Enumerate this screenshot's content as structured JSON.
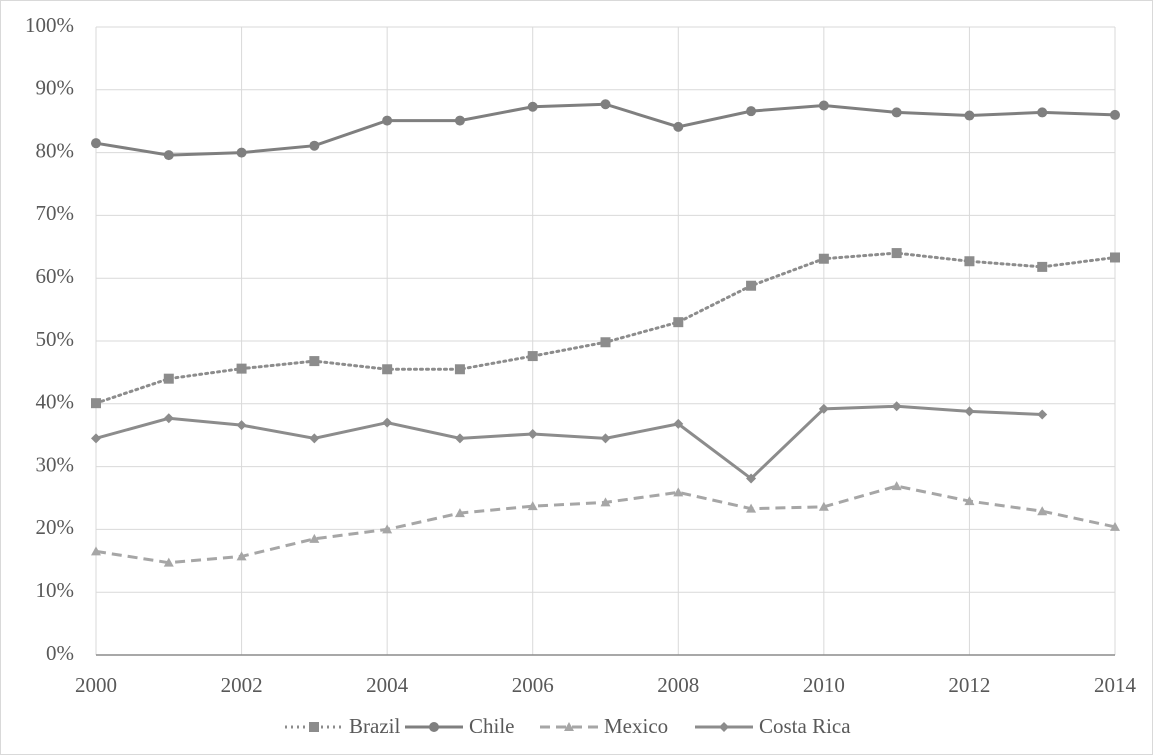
{
  "chart_data": {
    "type": "line",
    "x": [
      2000,
      2001,
      2002,
      2003,
      2004,
      2005,
      2006,
      2007,
      2008,
      2009,
      2010,
      2011,
      2012,
      2013,
      2014
    ],
    "series": [
      {
        "name": "Brazil",
        "color": "#8c8c8c",
        "marker": "square",
        "dash": "dotted",
        "values": [
          40.1,
          44.0,
          45.6,
          46.8,
          45.5,
          45.5,
          47.6,
          49.8,
          53.0,
          58.8,
          63.1,
          64.0,
          62.7,
          61.8,
          63.3
        ]
      },
      {
        "name": "Chile",
        "color": "#7f7f7f",
        "marker": "circle",
        "dash": "solid",
        "values": [
          81.5,
          79.6,
          80.0,
          81.1,
          85.1,
          85.1,
          87.3,
          87.7,
          84.1,
          86.6,
          87.5,
          86.4,
          85.9,
          86.4,
          86.0
        ]
      },
      {
        "name": "Mexico",
        "color": "#a6a6a6",
        "marker": "triangle",
        "dash": "dashed",
        "values": [
          16.5,
          14.7,
          15.7,
          18.5,
          20.0,
          22.6,
          23.7,
          24.3,
          25.9,
          23.3,
          23.6,
          26.9,
          24.5,
          22.9,
          20.4
        ]
      },
      {
        "name": "Costa Rica",
        "color": "#8c8c8c",
        "marker": "diamond",
        "dash": "solid",
        "values": [
          34.5,
          37.7,
          36.6,
          34.5,
          37.0,
          34.5,
          35.2,
          34.5,
          36.8,
          28.1,
          39.2,
          39.6,
          38.8,
          38.3,
          null
        ]
      }
    ],
    "xlim": [
      2000,
      2014
    ],
    "xticks": [
      2000,
      2002,
      2004,
      2006,
      2008,
      2010,
      2012,
      2014
    ],
    "ylim": [
      0,
      100
    ],
    "yticks": [
      {
        "value": 0,
        "label": "0%"
      },
      {
        "value": 10,
        "label": "10%"
      },
      {
        "value": 20,
        "label": "20%"
      },
      {
        "value": 30,
        "label": "30%"
      },
      {
        "value": 40,
        "label": "40%"
      },
      {
        "value": 50,
        "label": "50%"
      },
      {
        "value": 60,
        "label": "60%"
      },
      {
        "value": 70,
        "label": "70%"
      },
      {
        "value": 80,
        "label": "80%"
      },
      {
        "value": 90,
        "label": "90%"
      },
      {
        "value": 100,
        "label": "100%"
      }
    ],
    "grid": true,
    "legend": "bottom"
  }
}
